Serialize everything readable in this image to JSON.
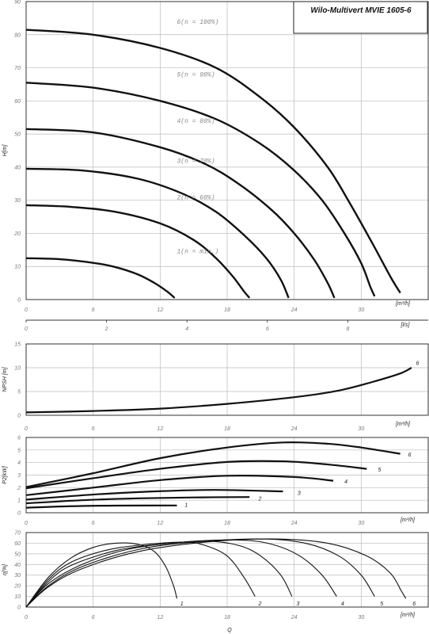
{
  "title": "Wilo-Multivert MVIE 1605-6",
  "units": {
    "flow_m3h": "[m³/h]",
    "flow_ls": "[l/s]",
    "q_label": "Q"
  },
  "chart_data": [
    {
      "id": "head",
      "type": "line",
      "ylabel": "H[m]",
      "ylim": [
        0,
        90
      ],
      "xlim": [
        0,
        36
      ],
      "yticks": [
        0,
        10,
        20,
        30,
        40,
        50,
        60,
        70,
        80,
        90
      ],
      "xticks_m3h": [
        0,
        6,
        12,
        18,
        24,
        30
      ],
      "xticks_ls": [
        0,
        2,
        4,
        6,
        8
      ],
      "xlim_ls": [
        0,
        10
      ],
      "grid": true,
      "series": [
        {
          "name": "1(n = min.)",
          "label": "1(n = min.)",
          "points": [
            [
              0,
              12.5
            ],
            [
              3,
              12.2
            ],
            [
              6,
              11.1
            ],
            [
              8,
              9.8
            ],
            [
              10,
              7.6
            ],
            [
              11.5,
              5.0
            ],
            [
              12.6,
              2.5
            ],
            [
              13.3,
              0.5
            ]
          ]
        },
        {
          "name": "2(n = 60%)",
          "label": "2(n = 60%)",
          "points": [
            [
              0,
              28.5
            ],
            [
              4,
              28.0
            ],
            [
              8,
              26.5
            ],
            [
              12,
              23.0
            ],
            [
              15,
              18.0
            ],
            [
              17,
              12.5
            ],
            [
              18.5,
              7.0
            ],
            [
              19.5,
              2.5
            ],
            [
              20.0,
              0.5
            ]
          ]
        },
        {
          "name": "3(n = 70%)",
          "label": "3(n = 70%)",
          "points": [
            [
              0,
              39.5
            ],
            [
              5,
              39.0
            ],
            [
              10,
              36.5
            ],
            [
              14,
              32.0
            ],
            [
              17,
              26.5
            ],
            [
              19.5,
              19.5
            ],
            [
              21.5,
              12.5
            ],
            [
              22.8,
              6.0
            ],
            [
              23.5,
              0.5
            ]
          ]
        },
        {
          "name": "4(n = 80%)",
          "label": "4(n = 80%)",
          "points": [
            [
              0,
              51.5
            ],
            [
              6,
              50.5
            ],
            [
              12,
              46.0
            ],
            [
              16,
              41.0
            ],
            [
              19,
              35.0
            ],
            [
              22,
              27.0
            ],
            [
              24,
              20.0
            ],
            [
              25.8,
              12.0
            ],
            [
              27,
              5.0
            ],
            [
              27.6,
              0.5
            ]
          ]
        },
        {
          "name": "5(n = 90%)",
          "label": "5(n = 90%)",
          "points": [
            [
              0,
              65.5
            ],
            [
              6,
              64.0
            ],
            [
              12,
              60.0
            ],
            [
              17,
              54.5
            ],
            [
              21,
              47.0
            ],
            [
              24,
              39.0
            ],
            [
              26.5,
              30.0
            ],
            [
              28.5,
              20.0
            ],
            [
              30,
              11.0
            ],
            [
              30.8,
              4.0
            ],
            [
              31.2,
              1.0
            ]
          ]
        },
        {
          "name": "6(n = 100%)",
          "label": "6(n = 100%)",
          "points": [
            [
              0,
              81.5
            ],
            [
              6,
              80.0
            ],
            [
              12,
              76.0
            ],
            [
              17,
              70.0
            ],
            [
              21,
              61.0
            ],
            [
              24,
              52.0
            ],
            [
              27,
              40.0
            ],
            [
              29,
              29.0
            ],
            [
              31,
              17.0
            ],
            [
              32.6,
              7.0
            ],
            [
              33.5,
              2.0
            ]
          ]
        }
      ]
    },
    {
      "id": "npsh",
      "type": "line",
      "ylabel": "NPSH [m]",
      "ylim": [
        0,
        15
      ],
      "xlim": [
        0,
        36
      ],
      "yticks": [
        0,
        5,
        10,
        15
      ],
      "xticks": [
        0,
        6,
        12,
        18,
        24,
        30
      ],
      "grid": true,
      "series": [
        {
          "name": "6",
          "label": "6",
          "points": [
            [
              0,
              0.6
            ],
            [
              6,
              0.9
            ],
            [
              12,
              1.4
            ],
            [
              18,
              2.4
            ],
            [
              24,
              3.8
            ],
            [
              28,
              5.2
            ],
            [
              31,
              7.0
            ],
            [
              33.5,
              8.8
            ],
            [
              34.5,
              10.0
            ]
          ]
        }
      ]
    },
    {
      "id": "power",
      "type": "line",
      "ylabel": "P2[kW]",
      "ylim": [
        0,
        6
      ],
      "xlim": [
        0,
        36
      ],
      "yticks": [
        0,
        1,
        2,
        3,
        4,
        5,
        6
      ],
      "xticks": [
        0,
        6,
        12,
        18,
        24,
        30
      ],
      "grid": true,
      "series": [
        {
          "name": "1",
          "label": "1",
          "points": [
            [
              0,
              0.4
            ],
            [
              4,
              0.52
            ],
            [
              8,
              0.57
            ],
            [
              13.5,
              0.58
            ]
          ]
        },
        {
          "name": "2",
          "label": "2",
          "points": [
            [
              0,
              0.75
            ],
            [
              5,
              1.0
            ],
            [
              10,
              1.15
            ],
            [
              15,
              1.22
            ],
            [
              20,
              1.25
            ]
          ]
        },
        {
          "name": "3",
          "label": "3",
          "points": [
            [
              0,
              1.05
            ],
            [
              6,
              1.45
            ],
            [
              12,
              1.72
            ],
            [
              17,
              1.82
            ],
            [
              23,
              1.7
            ]
          ]
        },
        {
          "name": "4",
          "label": "4",
          "points": [
            [
              0,
              1.4
            ],
            [
              6,
              2.0
            ],
            [
              12,
              2.6
            ],
            [
              18,
              2.95
            ],
            [
              24,
              2.85
            ],
            [
              27.5,
              2.55
            ]
          ]
        },
        {
          "name": "5",
          "label": "5",
          "points": [
            [
              0,
              1.95
            ],
            [
              6,
              2.75
            ],
            [
              12,
              3.5
            ],
            [
              18,
              4.05
            ],
            [
              23,
              4.1
            ],
            [
              27,
              3.85
            ],
            [
              30.5,
              3.5
            ]
          ]
        },
        {
          "name": "6",
          "label": "6",
          "points": [
            [
              0,
              2.05
            ],
            [
              6,
              3.15
            ],
            [
              12,
              4.35
            ],
            [
              18,
              5.2
            ],
            [
              23,
              5.6
            ],
            [
              27,
              5.5
            ],
            [
              30,
              5.2
            ],
            [
              33.5,
              4.7
            ]
          ]
        }
      ]
    },
    {
      "id": "efficiency",
      "type": "line",
      "ylabel": "η[%]",
      "xlabel": "Q",
      "ylim": [
        0,
        70
      ],
      "xlim": [
        0,
        36
      ],
      "yticks": [
        0,
        10,
        20,
        30,
        40,
        50,
        60,
        70
      ],
      "xticks": [
        0,
        6,
        12,
        18,
        24,
        30
      ],
      "grid": true,
      "series": [
        {
          "name": "1",
          "label": "1",
          "points": [
            [
              0,
              0
            ],
            [
              2,
              28
            ],
            [
              4,
              46
            ],
            [
              6,
              56
            ],
            [
              8,
              60
            ],
            [
              10,
              59
            ],
            [
              11.5,
              52
            ],
            [
              12.5,
              38
            ],
            [
              13.2,
              20
            ],
            [
              13.5,
              8
            ]
          ]
        },
        {
          "name": "2",
          "label": "2",
          "points": [
            [
              0,
              0
            ],
            [
              2,
              26
            ],
            [
              4,
              42
            ],
            [
              7,
              53
            ],
            [
              10,
              58
            ],
            [
              14,
              61
            ],
            [
              16,
              58
            ],
            [
              18,
              48
            ],
            [
              19.5,
              28
            ],
            [
              20.5,
              10
            ]
          ]
        },
        {
          "name": "3",
          "label": "3",
          "points": [
            [
              0,
              0
            ],
            [
              2,
              24
            ],
            [
              4,
              39
            ],
            [
              8,
              53
            ],
            [
              12,
              59
            ],
            [
              16,
              62
            ],
            [
              19,
              58
            ],
            [
              21,
              48
            ],
            [
              22.8,
              30
            ],
            [
              23.8,
              10
            ]
          ]
        },
        {
          "name": "4",
          "label": "4",
          "points": [
            [
              0,
              0
            ],
            [
              2,
              22
            ],
            [
              5,
              40
            ],
            [
              9,
              54
            ],
            [
              14,
              61
            ],
            [
              19,
              63
            ],
            [
              22,
              59
            ],
            [
              24.5,
              48
            ],
            [
              26.5,
              30
            ],
            [
              27.8,
              10
            ]
          ]
        },
        {
          "name": "5",
          "label": "5",
          "points": [
            [
              0,
              0
            ],
            [
              2,
              20
            ],
            [
              5,
              38
            ],
            [
              10,
              54
            ],
            [
              15,
              61
            ],
            [
              21,
              64
            ],
            [
              25,
              60
            ],
            [
              28,
              48
            ],
            [
              30,
              30
            ],
            [
              31.2,
              10
            ]
          ]
        },
        {
          "name": "6",
          "label": "6",
          "points": [
            [
              0,
              0
            ],
            [
              2,
              19
            ],
            [
              5,
              36
            ],
            [
              10,
              52
            ],
            [
              16,
              61
            ],
            [
              22,
              64
            ],
            [
              27,
              60
            ],
            [
              30.5,
              48
            ],
            [
              32.6,
              32
            ],
            [
              33.6,
              15
            ],
            [
              34,
              8
            ]
          ]
        }
      ]
    }
  ]
}
